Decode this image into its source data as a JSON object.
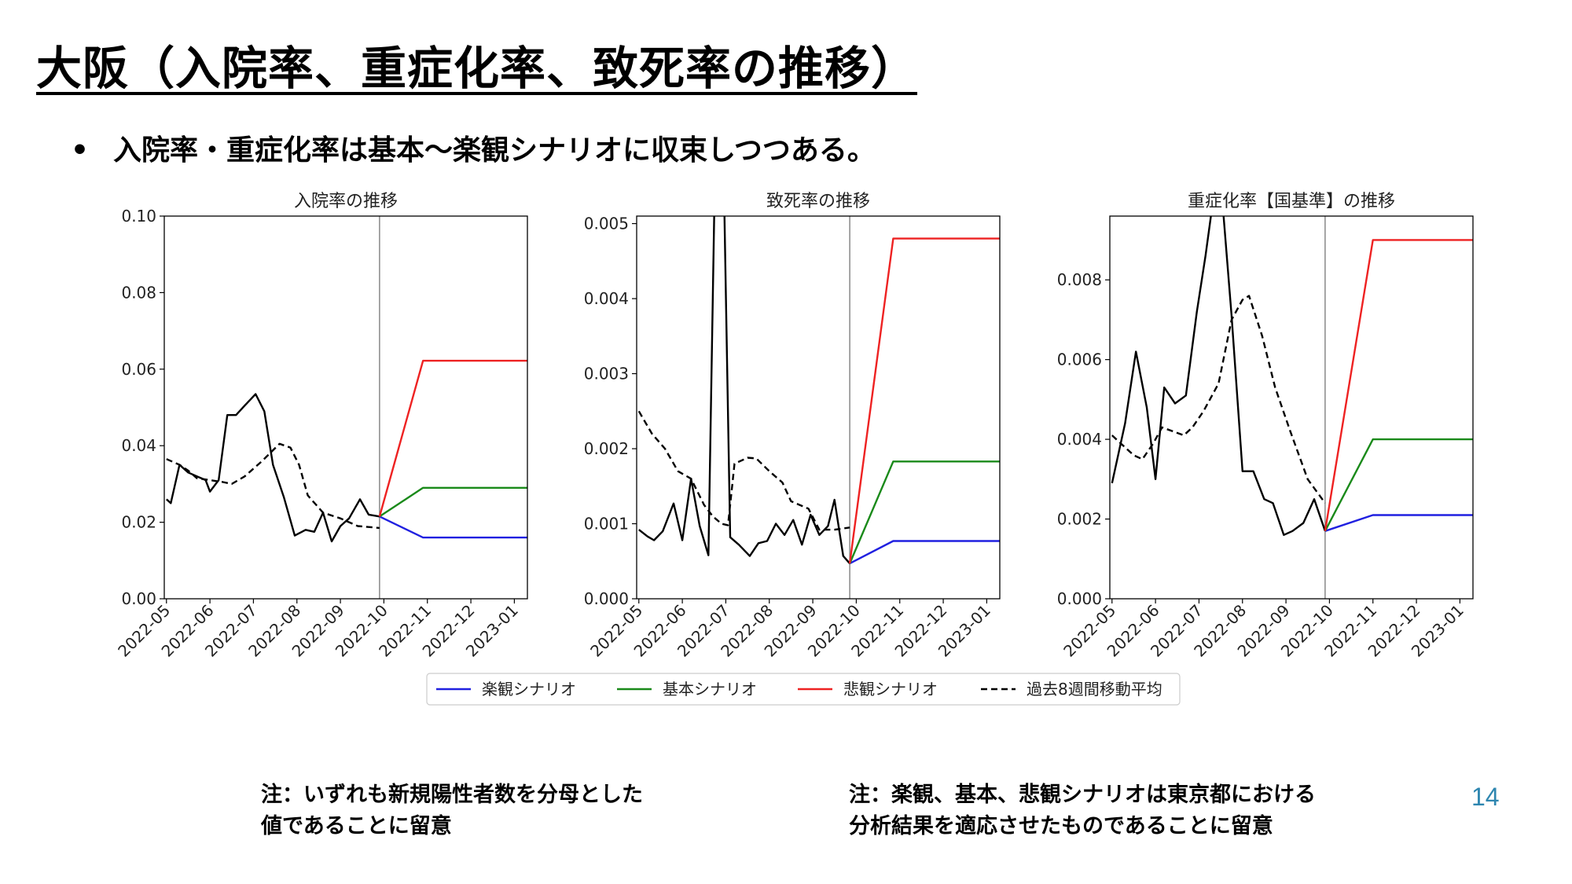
{
  "slide": {
    "title": "大阪（入院率、重症化率、致死率の推移）",
    "bullet": "入院率・重症化率は基本〜楽観シナリオに収束しつつある。",
    "bullet_marker": "•",
    "note_left": [
      "注：いずれも新規陽性者数を分母とした",
      "値であることに留意"
    ],
    "note_right": [
      "注：楽観、基本、悲観シナリオは東京都における",
      "分析結果を適応させたものであることに留意"
    ],
    "page_number": "14"
  },
  "colors": {
    "optimistic": "#2020e0",
    "base": "#1a8a1a",
    "pessimistic": "#ee2222",
    "moving_average": "#000000",
    "actual": "#000000",
    "divider": "#888888"
  },
  "legend": {
    "entries": [
      {
        "label": "楽観シナリオ",
        "color": "#2020e0",
        "dash": "solid"
      },
      {
        "label": "基本シナリオ",
        "color": "#1a8a1a",
        "dash": "solid"
      },
      {
        "label": "悲観シナリオ",
        "color": "#ee2222",
        "dash": "solid"
      },
      {
        "label": "過去8週間移動平均",
        "color": "#000000",
        "dash": "dashed"
      }
    ],
    "placement": "bottom-center"
  },
  "chart_data": [
    {
      "type": "line",
      "title": "入院率の推移",
      "x_ticks": [
        "2022-05",
        "2022-06",
        "2022-07",
        "2022-08",
        "2022-09",
        "2022-10",
        "2022-11",
        "2022-12",
        "2023-01"
      ],
      "xlim": [
        -0.05,
        8.3
      ],
      "ylim": [
        0,
        0.1
      ],
      "y_ticks": [
        "0.00",
        "0.02",
        "0.04",
        "0.06",
        "0.08",
        "0.10"
      ],
      "y_tick_values": [
        0,
        0.02,
        0.04,
        0.06,
        0.08,
        0.1
      ],
      "divider_x": 4.9,
      "series": [
        {
          "role": "actual",
          "points": [
            [
              0,
              0.026
            ],
            [
              0.1,
              0.025
            ],
            [
              0.3,
              0.035
            ],
            [
              0.5,
              0.033
            ],
            [
              0.7,
              0.032
            ],
            [
              0.9,
              0.031
            ],
            [
              1.0,
              0.028
            ],
            [
              1.2,
              0.031
            ],
            [
              1.4,
              0.048
            ],
            [
              1.6,
              0.048
            ],
            [
              1.8,
              0.0505
            ],
            [
              2.05,
              0.0535
            ],
            [
              2.25,
              0.049
            ],
            [
              2.45,
              0.035
            ],
            [
              2.7,
              0.0265
            ],
            [
              2.95,
              0.0165
            ],
            [
              3.2,
              0.018
            ],
            [
              3.4,
              0.0175
            ],
            [
              3.6,
              0.0225
            ],
            [
              3.8,
              0.015
            ],
            [
              4.0,
              0.019
            ],
            [
              4.2,
              0.021
            ],
            [
              4.45,
              0.026
            ],
            [
              4.65,
              0.022
            ],
            [
              4.9,
              0.0215
            ]
          ]
        },
        {
          "role": "moving_average",
          "points": [
            [
              0,
              0.0365
            ],
            [
              0.3,
              0.035
            ],
            [
              0.5,
              0.0335
            ],
            [
              0.7,
              0.0315
            ],
            [
              1.0,
              0.031
            ],
            [
              1.3,
              0.0305
            ],
            [
              1.5,
              0.03
            ],
            [
              1.8,
              0.032
            ],
            [
              2.2,
              0.036
            ],
            [
              2.6,
              0.0405
            ],
            [
              2.85,
              0.0395
            ],
            [
              3.05,
              0.035
            ],
            [
              3.25,
              0.027
            ],
            [
              3.6,
              0.0225
            ],
            [
              4.0,
              0.021
            ],
            [
              4.4,
              0.019
            ],
            [
              4.9,
              0.0185
            ]
          ]
        },
        {
          "role": "optimistic",
          "points": [
            [
              4.9,
              0.0215
            ],
            [
              5.9,
              0.016
            ],
            [
              8.3,
              0.016
            ]
          ]
        },
        {
          "role": "base",
          "points": [
            [
              4.9,
              0.0215
            ],
            [
              5.9,
              0.029
            ],
            [
              8.3,
              0.029
            ]
          ]
        },
        {
          "role": "pessimistic",
          "points": [
            [
              4.9,
              0.0215
            ],
            [
              5.9,
              0.0622
            ],
            [
              8.3,
              0.0622
            ]
          ]
        }
      ]
    },
    {
      "type": "line",
      "title": "致死率の推移",
      "x_ticks": [
        "2022-05",
        "2022-06",
        "2022-07",
        "2022-08",
        "2022-09",
        "2022-10",
        "2022-11",
        "2022-12",
        "2023-01"
      ],
      "xlim": [
        -0.05,
        8.3
      ],
      "ylim": [
        0,
        0.0051
      ],
      "y_ticks": [
        "0.000",
        "0.001",
        "0.002",
        "0.003",
        "0.004",
        "0.005"
      ],
      "y_tick_values": [
        0,
        0.001,
        0.002,
        0.003,
        0.004,
        0.005
      ],
      "divider_x": 4.85,
      "series": [
        {
          "role": "actual",
          "points": [
            [
              0,
              0.00092
            ],
            [
              0.2,
              0.00083
            ],
            [
              0.35,
              0.00078
            ],
            [
              0.55,
              0.0009
            ],
            [
              0.8,
              0.00127
            ],
            [
              1.0,
              0.00078
            ],
            [
              1.2,
              0.0016
            ],
            [
              1.4,
              0.00097
            ],
            [
              1.6,
              0.00058
            ],
            [
              1.75,
              0.0057
            ],
            [
              1.95,
              0.0057
            ],
            [
              2.1,
              0.00082
            ],
            [
              2.3,
              0.00072
            ],
            [
              2.55,
              0.00057
            ],
            [
              2.75,
              0.00074
            ],
            [
              2.95,
              0.00077
            ],
            [
              3.15,
              0.001
            ],
            [
              3.35,
              0.00085
            ],
            [
              3.55,
              0.00105
            ],
            [
              3.75,
              0.00072
            ],
            [
              3.95,
              0.00112
            ],
            [
              4.15,
              0.00085
            ],
            [
              4.35,
              0.00097
            ],
            [
              4.5,
              0.00132
            ],
            [
              4.7,
              0.00057
            ],
            [
              4.85,
              0.00047
            ]
          ]
        },
        {
          "role": "moving_average",
          "points": [
            [
              0,
              0.0025
            ],
            [
              0.3,
              0.0022
            ],
            [
              0.6,
              0.002
            ],
            [
              0.9,
              0.0017
            ],
            [
              1.2,
              0.0016
            ],
            [
              1.5,
              0.00125
            ],
            [
              1.7,
              0.0011
            ],
            [
              1.9,
              0.001
            ],
            [
              2.05,
              0.00098
            ],
            [
              2.2,
              0.0018
            ],
            [
              2.5,
              0.00188
            ],
            [
              2.7,
              0.00187
            ],
            [
              3.0,
              0.0017
            ],
            [
              3.3,
              0.00155
            ],
            [
              3.5,
              0.0013
            ],
            [
              3.9,
              0.0012
            ],
            [
              4.15,
              0.00092
            ],
            [
              4.5,
              0.00092
            ],
            [
              4.85,
              0.00095
            ]
          ]
        },
        {
          "role": "optimistic",
          "points": [
            [
              4.85,
              0.00047
            ],
            [
              5.85,
              0.00077
            ],
            [
              8.3,
              0.00077
            ]
          ]
        },
        {
          "role": "base",
          "points": [
            [
              4.85,
              0.00047
            ],
            [
              5.85,
              0.00183
            ],
            [
              8.3,
              0.00183
            ]
          ]
        },
        {
          "role": "pessimistic",
          "points": [
            [
              4.85,
              0.00047
            ],
            [
              5.85,
              0.0048
            ],
            [
              8.3,
              0.0048
            ]
          ]
        }
      ]
    },
    {
      "type": "line",
      "title": "重症化率【国基準】の推移",
      "x_ticks": [
        "2022-05",
        "2022-06",
        "2022-07",
        "2022-08",
        "2022-09",
        "2022-10",
        "2022-11",
        "2022-12",
        "2023-01"
      ],
      "xlim": [
        -0.05,
        8.3
      ],
      "ylim": [
        0,
        0.0096
      ],
      "y_ticks": [
        "0.000",
        "0.002",
        "0.004",
        "0.006",
        "0.008"
      ],
      "y_tick_values": [
        0,
        0.002,
        0.004,
        0.006,
        0.008
      ],
      "divider_x": 4.9,
      "series": [
        {
          "role": "actual",
          "points": [
            [
              0,
              0.0029
            ],
            [
              0.3,
              0.0044
            ],
            [
              0.55,
              0.0062
            ],
            [
              0.8,
              0.0048
            ],
            [
              1.0,
              0.003
            ],
            [
              1.2,
              0.0053
            ],
            [
              1.45,
              0.0049
            ],
            [
              1.7,
              0.0051
            ],
            [
              1.95,
              0.0072
            ],
            [
              2.15,
              0.0086
            ],
            [
              2.3,
              0.0098
            ],
            [
              2.55,
              0.0098
            ],
            [
              2.75,
              0.0071
            ],
            [
              3.0,
              0.0032
            ],
            [
              3.25,
              0.0032
            ],
            [
              3.5,
              0.0025
            ],
            [
              3.7,
              0.0024
            ],
            [
              3.95,
              0.0016
            ],
            [
              4.15,
              0.0017
            ],
            [
              4.4,
              0.0019
            ],
            [
              4.65,
              0.0025
            ],
            [
              4.9,
              0.0017
            ]
          ]
        },
        {
          "role": "moving_average",
          "points": [
            [
              0,
              0.0041
            ],
            [
              0.2,
              0.0039
            ],
            [
              0.5,
              0.0036
            ],
            [
              0.7,
              0.0035
            ],
            [
              0.95,
              0.0039
            ],
            [
              1.15,
              0.0043
            ],
            [
              1.4,
              0.0042
            ],
            [
              1.65,
              0.0041
            ],
            [
              1.85,
              0.0043
            ],
            [
              2.1,
              0.0047
            ],
            [
              2.45,
              0.0054
            ],
            [
              2.75,
              0.007
            ],
            [
              3.0,
              0.0075
            ],
            [
              3.15,
              0.0076
            ],
            [
              3.45,
              0.0066
            ],
            [
              3.75,
              0.0053
            ],
            [
              4.1,
              0.0042
            ],
            [
              4.5,
              0.003
            ],
            [
              4.9,
              0.0024
            ]
          ]
        },
        {
          "role": "optimistic",
          "points": [
            [
              4.9,
              0.0017
            ],
            [
              6.0,
              0.0021
            ],
            [
              8.3,
              0.0021
            ]
          ]
        },
        {
          "role": "base",
          "points": [
            [
              4.9,
              0.0017
            ],
            [
              6.0,
              0.004
            ],
            [
              8.3,
              0.004
            ]
          ]
        },
        {
          "role": "pessimistic",
          "points": [
            [
              4.9,
              0.0017
            ],
            [
              6.0,
              0.009
            ],
            [
              8.3,
              0.009
            ]
          ]
        }
      ]
    }
  ]
}
